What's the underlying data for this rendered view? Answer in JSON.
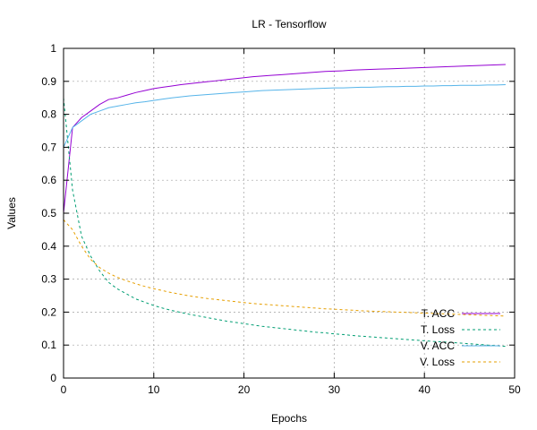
{
  "chart_data": {
    "type": "line",
    "title": "LR - Tensorflow",
    "xlabel": "Epochs",
    "ylabel": "Values",
    "xlim": [
      0,
      50
    ],
    "ylim": [
      0,
      1
    ],
    "xticks": [
      "0",
      "10",
      "20",
      "30",
      "40",
      "50"
    ],
    "yticks": [
      "0",
      "0.1",
      "0.2",
      "0.3",
      "0.4",
      "0.5",
      "0.6",
      "0.7",
      "0.8",
      "0.9",
      "1"
    ],
    "grid": true,
    "legend_position": "bottom-right",
    "x": [
      0,
      1,
      2,
      3,
      4,
      5,
      6,
      7,
      8,
      9,
      10,
      11,
      12,
      13,
      14,
      15,
      16,
      17,
      18,
      19,
      20,
      21,
      22,
      23,
      24,
      25,
      26,
      27,
      28,
      29,
      30,
      31,
      32,
      33,
      34,
      35,
      36,
      37,
      38,
      39,
      40,
      41,
      42,
      43,
      44,
      45,
      46,
      47,
      48,
      49
    ],
    "series": [
      {
        "name": "T. ACC",
        "color": "#9400d3",
        "dash": "solid",
        "values": [
          0.5,
          0.76,
          0.79,
          0.81,
          0.83,
          0.845,
          0.85,
          0.858,
          0.866,
          0.872,
          0.878,
          0.882,
          0.886,
          0.89,
          0.893,
          0.896,
          0.899,
          0.902,
          0.905,
          0.908,
          0.911,
          0.914,
          0.916,
          0.918,
          0.92,
          0.922,
          0.924,
          0.926,
          0.928,
          0.93,
          0.931,
          0.932,
          0.934,
          0.935,
          0.936,
          0.937,
          0.938,
          0.939,
          0.94,
          0.941,
          0.942,
          0.943,
          0.944,
          0.945,
          0.946,
          0.947,
          0.948,
          0.949,
          0.95,
          0.951
        ]
      },
      {
        "name": "T. Loss",
        "color": "#009e73",
        "dash": "dashed",
        "values": [
          0.85,
          0.57,
          0.43,
          0.37,
          0.325,
          0.29,
          0.27,
          0.255,
          0.24,
          0.23,
          0.22,
          0.212,
          0.205,
          0.199,
          0.193,
          0.188,
          0.183,
          0.178,
          0.173,
          0.169,
          0.165,
          0.161,
          0.157,
          0.154,
          0.151,
          0.148,
          0.145,
          0.142,
          0.139,
          0.137,
          0.134,
          0.132,
          0.129,
          0.127,
          0.125,
          0.123,
          0.121,
          0.119,
          0.117,
          0.115,
          0.113,
          0.111,
          0.11,
          0.108,
          0.106,
          0.104,
          0.102,
          0.1,
          0.098,
          0.096
        ]
      },
      {
        "name": "V. ACC",
        "color": "#56b4e9",
        "dash": "solid",
        "values": [
          0.7,
          0.76,
          0.78,
          0.8,
          0.81,
          0.82,
          0.825,
          0.83,
          0.835,
          0.838,
          0.842,
          0.846,
          0.85,
          0.853,
          0.856,
          0.858,
          0.86,
          0.862,
          0.864,
          0.866,
          0.868,
          0.87,
          0.872,
          0.873,
          0.874,
          0.875,
          0.876,
          0.877,
          0.878,
          0.879,
          0.88,
          0.88,
          0.881,
          0.882,
          0.882,
          0.883,
          0.884,
          0.884,
          0.885,
          0.885,
          0.886,
          0.886,
          0.887,
          0.887,
          0.888,
          0.888,
          0.888,
          0.889,
          0.889,
          0.89
        ]
      },
      {
        "name": "V. Loss",
        "color": "#e69f00",
        "dash": "dashed",
        "values": [
          0.48,
          0.45,
          0.4,
          0.36,
          0.335,
          0.318,
          0.305,
          0.295,
          0.286,
          0.278,
          0.271,
          0.265,
          0.259,
          0.254,
          0.249,
          0.245,
          0.241,
          0.238,
          0.235,
          0.232,
          0.229,
          0.226,
          0.224,
          0.222,
          0.22,
          0.218,
          0.216,
          0.214,
          0.212,
          0.21,
          0.209,
          0.207,
          0.206,
          0.204,
          0.203,
          0.202,
          0.201,
          0.2,
          0.199,
          0.198,
          0.197,
          0.196,
          0.195,
          0.194,
          0.193,
          0.192,
          0.191,
          0.19,
          0.189,
          0.188
        ]
      }
    ]
  }
}
